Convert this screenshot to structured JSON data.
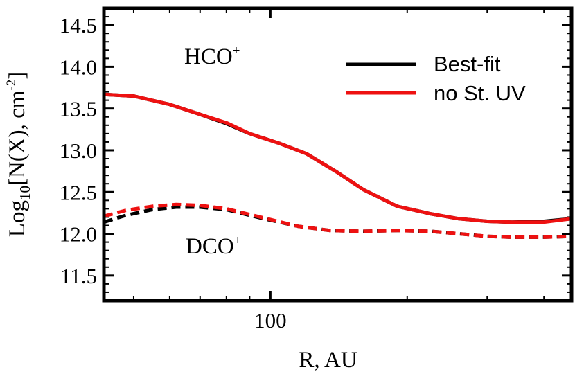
{
  "chart_data": {
    "type": "line",
    "xlabel": "R, AU",
    "ylabel_parts": {
      "base": "Log",
      "sub": "10",
      "mid": "[N(X), cm",
      "sup": "-2",
      "end": "]"
    },
    "x_scale": "log",
    "xlim": [
      43,
      460
    ],
    "ylim": [
      11.2,
      14.7
    ],
    "x_ticks": [
      {
        "value": 100,
        "label": "100"
      }
    ],
    "y_ticks": [
      {
        "value": 11.5,
        "label": "11.5"
      },
      {
        "value": 12.0,
        "label": "12.0"
      },
      {
        "value": 12.5,
        "label": "12.5"
      },
      {
        "value": 13.0,
        "label": "13.0"
      },
      {
        "value": 13.5,
        "label": "13.5"
      },
      {
        "value": 14.0,
        "label": "14.0"
      },
      {
        "value": 14.5,
        "label": "14.5"
      }
    ],
    "annotations": [
      {
        "id": "hco",
        "base": "HCO",
        "sup": "+"
      },
      {
        "id": "dco",
        "base": "DCO",
        "sup": "+"
      }
    ],
    "legend": {
      "placement": "top-right"
    },
    "series": [
      {
        "name": "Best-fit",
        "molecule": "HCO+",
        "color": "#000000",
        "dash": "solid",
        "x": [
          43,
          50,
          60,
          70,
          80,
          90,
          105,
          120,
          140,
          160,
          190,
          225,
          260,
          300,
          340,
          400,
          460
        ],
        "y": [
          13.67,
          13.65,
          13.55,
          13.43,
          13.32,
          13.2,
          13.08,
          12.96,
          12.74,
          12.53,
          12.33,
          12.24,
          12.18,
          12.15,
          12.14,
          12.15,
          12.18
        ]
      },
      {
        "name": "no St. UV",
        "molecule": "HCO+",
        "color": "#ee1111",
        "dash": "solid",
        "x": [
          43,
          50,
          60,
          70,
          80,
          90,
          105,
          120,
          140,
          160,
          190,
          225,
          260,
          300,
          340,
          400,
          460
        ],
        "y": [
          13.67,
          13.65,
          13.55,
          13.43,
          13.33,
          13.2,
          13.08,
          12.96,
          12.74,
          12.53,
          12.33,
          12.24,
          12.18,
          12.15,
          12.14,
          12.14,
          12.18
        ]
      },
      {
        "name": "Best-fit",
        "molecule": "DCO+",
        "color": "#000000",
        "dash": "dashed",
        "x": [
          43,
          48,
          55,
          62,
          70,
          80,
          95,
          115,
          135,
          160,
          190,
          225,
          260,
          300,
          340,
          400,
          460
        ],
        "y": [
          12.14,
          12.22,
          12.29,
          12.32,
          12.32,
          12.29,
          12.19,
          12.09,
          12.04,
          12.03,
          12.04,
          12.03,
          12.0,
          11.97,
          11.96,
          11.96,
          11.97
        ]
      },
      {
        "name": "no St. UV",
        "molecule": "DCO+",
        "color": "#ee1111",
        "dash": "dashed",
        "x": [
          43,
          48,
          55,
          62,
          70,
          80,
          95,
          115,
          135,
          160,
          190,
          225,
          260,
          300,
          340,
          400,
          460
        ],
        "y": [
          12.21,
          12.28,
          12.33,
          12.35,
          12.34,
          12.3,
          12.2,
          12.09,
          12.04,
          12.03,
          12.04,
          12.03,
          12.0,
          11.97,
          11.96,
          11.96,
          11.97
        ]
      }
    ],
    "legend_entries": [
      {
        "label": "Best-fit",
        "color": "#000000"
      },
      {
        "label": "no St. UV",
        "color": "#ee1111"
      }
    ]
  }
}
